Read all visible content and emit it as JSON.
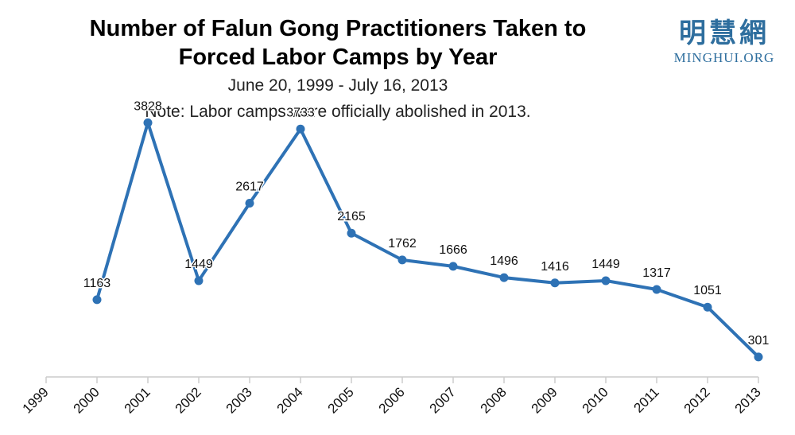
{
  "header": {
    "title_line1": "Number of Falun Gong Practitioners Taken to",
    "title_line2": "Forced Labor Camps by Year",
    "subtitle": "June 20, 1999 - July 16, 2013",
    "note": "Note: Labor camps were officially abolished in 2013."
  },
  "logo": {
    "chinese": "明慧網",
    "english": "MINGHUI.ORG",
    "color": "#2e6e9e"
  },
  "chart_data": {
    "type": "line",
    "title": "Number of Falun Gong Practitioners Taken to Forced Labor Camps by Year",
    "subtitle": "June 20, 1999 - July 16, 2013",
    "xlabel": "",
    "ylabel": "",
    "x_ticks": [
      "1999",
      "2000",
      "2001",
      "2002",
      "2003",
      "2004",
      "2005",
      "2006",
      "2007",
      "2008",
      "2009",
      "2010",
      "2011",
      "2012",
      "2013"
    ],
    "x": [
      "2000",
      "2001",
      "2002",
      "2003",
      "2004",
      "2005",
      "2006",
      "2007",
      "2008",
      "2009",
      "2010",
      "2011",
      "2012",
      "2013"
    ],
    "values": [
      1163,
      3828,
      1449,
      2617,
      3733,
      2165,
      1762,
      1666,
      1496,
      1416,
      1449,
      1317,
      1051,
      301
    ],
    "ylim": [
      0,
      4000
    ],
    "grid": false,
    "line_color": "#2e72b5",
    "data_labels": true
  }
}
